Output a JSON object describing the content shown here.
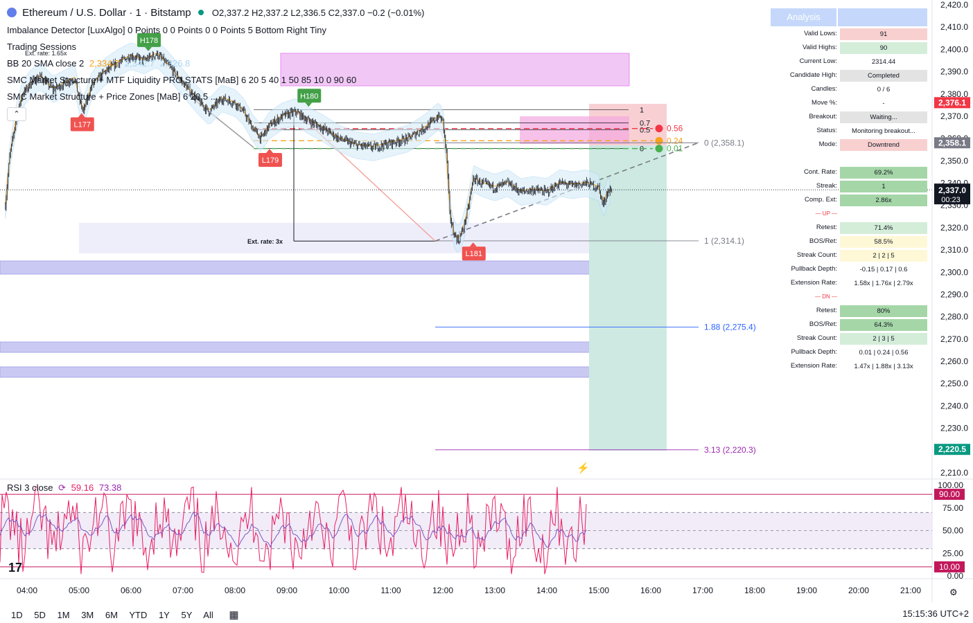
{
  "header": {
    "title": "Ethereum / U.S. Dollar · 1 · Bitstamp",
    "ohlc": "O2,337.2  H2,337.2  L2,336.5  C2,337.0  −0.2 (−0.01%)"
  },
  "indicators": {
    "imbalance": "Imbalance Detector [LuxAlgo] 0 Points 0 0 Points 0 0 Points 5 Bottom Right Tiny",
    "sessions": "Trading Sessions",
    "bb_label": "BB 20 SMA close 2",
    "bb_values": [
      "2,334.7",
      "2,342.7",
      "2,326.8"
    ],
    "smc": "SMC Market Structure + MTF Liquidity PRO STATS [MaB] 6 20 5 40 1 50 85 10 0 90 60",
    "smc_zones": "SMC Market Structure + Price Zones [MaB] 6 20 5 ...",
    "rsi_label": "RSI 3 close",
    "rsi_values": [
      "59.16",
      "73.38"
    ]
  },
  "chart_data": {
    "type": "candlestick",
    "symbol": "Ethereum / U.S. Dollar",
    "interval": "1",
    "exchange": "Bitstamp",
    "ylim": [
      2210,
      2420
    ],
    "yticks": [
      "2,420.0",
      "2,410.0",
      "2,400.0",
      "2,390.0",
      "2,380.0",
      "2,370.0",
      "2,360.0",
      "2,350.0",
      "2,340.0",
      "2,330.0",
      "2,320.0",
      "2,310.0",
      "2,300.0",
      "2,290.0",
      "2,280.0",
      "2,270.0",
      "2,260.0",
      "2,250.0",
      "2,240.0",
      "2,230.0",
      "2,220.0",
      "2,210.0"
    ],
    "xticks": [
      "04:00",
      "05:00",
      "06:00",
      "07:00",
      "08:00",
      "09:00",
      "10:00",
      "11:00",
      "12:00",
      "13:00",
      "14:00",
      "15:00",
      "16:00",
      "17:00",
      "18:00",
      "19:00",
      "20:00",
      "21:00"
    ],
    "price_path": [
      [
        "03:35",
        2330
      ],
      [
        "03:40",
        2352
      ],
      [
        "03:48",
        2370
      ],
      [
        "03:55",
        2380
      ],
      [
        "04:05",
        2385
      ],
      [
        "04:15",
        2388
      ],
      [
        "04:30",
        2382
      ],
      [
        "04:45",
        2385
      ],
      [
        "04:55",
        2387
      ],
      [
        "05:00",
        2378
      ],
      [
        "05:05",
        2372
      ],
      [
        "05:15",
        2384
      ],
      [
        "05:30",
        2390
      ],
      [
        "05:45",
        2394
      ],
      [
        "06:00",
        2397
      ],
      [
        "06:15",
        2395
      ],
      [
        "06:30",
        2398
      ],
      [
        "06:45",
        2392
      ],
      [
        "07:00",
        2385
      ],
      [
        "07:15",
        2378
      ],
      [
        "07:30",
        2372
      ],
      [
        "07:45",
        2378
      ],
      [
        "08:00",
        2376
      ],
      [
        "08:10",
        2372
      ],
      [
        "08:20",
        2365
      ],
      [
        "08:30",
        2360
      ],
      [
        "08:40",
        2366
      ],
      [
        "08:55",
        2370
      ],
      [
        "09:10",
        2372
      ],
      [
        "09:25",
        2368
      ],
      [
        "09:40",
        2365
      ],
      [
        "10:00",
        2360
      ],
      [
        "10:20",
        2357
      ],
      [
        "10:40",
        2356
      ],
      [
        "11:00",
        2358
      ],
      [
        "11:20",
        2360
      ],
      [
        "11:40",
        2365
      ],
      [
        "11:55",
        2370
      ],
      [
        "12:00",
        2368
      ],
      [
        "12:05",
        2350
      ],
      [
        "12:08",
        2326
      ],
      [
        "12:12",
        2318
      ],
      [
        "12:18",
        2314
      ],
      [
        "12:24",
        2320
      ],
      [
        "12:30",
        2330
      ],
      [
        "12:35",
        2342
      ],
      [
        "12:45",
        2340
      ],
      [
        "13:00",
        2338
      ],
      [
        "13:15",
        2340
      ],
      [
        "13:30",
        2336
      ],
      [
        "13:45",
        2337
      ],
      [
        "14:00",
        2336
      ],
      [
        "14:15",
        2340
      ],
      [
        "14:30",
        2339
      ],
      [
        "14:45",
        2340
      ],
      [
        "15:00",
        2338
      ],
      [
        "15:05",
        2330
      ],
      [
        "15:10",
        2336
      ],
      [
        "15:15",
        2337
      ]
    ],
    "current_price": "2,337.0",
    "countdown": "00:23",
    "price_badges": [
      {
        "value": "2,376.1",
        "price": 2376.1,
        "color": "#f23645"
      },
      {
        "value": "2,358.1",
        "price": 2358.1,
        "color": "#787b86"
      },
      {
        "value": "2,220.5",
        "price": 2220.5,
        "color": "#089981"
      }
    ],
    "pivots": [
      {
        "label": "H178",
        "time": "06:20",
        "price": 2398,
        "type": "high"
      },
      {
        "label": "L177",
        "time": "05:03",
        "price": 2372,
        "type": "low"
      },
      {
        "label": "L179",
        "time": "08:40",
        "price": 2356,
        "type": "low"
      },
      {
        "label": "H180",
        "time": "09:25",
        "price": 2373,
        "type": "high"
      },
      {
        "label": "L181",
        "time": "12:35",
        "price": 2314,
        "type": "low"
      }
    ],
    "fib_left": [
      {
        "label": "1",
        "price": 2373
      },
      {
        "label": "0.7",
        "price": 2367
      },
      {
        "label": "0.5",
        "price": 2364
      },
      {
        "label": "0",
        "price": 2355.5
      }
    ],
    "targets": [
      {
        "label": "0.56",
        "price": 2364.5,
        "color": "#f23645"
      },
      {
        "label": "0.24",
        "price": 2359,
        "color": "#f7a21b"
      },
      {
        "label": "0.01",
        "price": 2355.5,
        "color": "#4caf50"
      }
    ],
    "fib_right": [
      {
        "label": "0 (2,358.1)",
        "price": 2358.1,
        "color": "#787b86"
      },
      {
        "label": "1 (2,314.1)",
        "price": 2314.1,
        "color": "#787b86"
      },
      {
        "label": "1.88 (2,275.4)",
        "price": 2275.4,
        "color": "#2962ff"
      },
      {
        "label": "3.13 (2,220.3)",
        "price": 2220.3,
        "color": "#9c27b0"
      }
    ],
    "annotations": [
      "Ext. rate: 1.65x",
      "Ext. rate: 3x"
    ],
    "rsi": {
      "ylim": [
        0,
        100
      ],
      "yticks": [
        "100.00",
        "75.00",
        "50.00",
        "25.00",
        "0.00"
      ],
      "overbought": "90.00",
      "oversold": "10.00",
      "levels": [
        90,
        70,
        50,
        30,
        10
      ]
    }
  },
  "analysis_table": {
    "header": "Analysis",
    "rows": [
      {
        "label": "Valid Lows:",
        "value": "91",
        "bg": "#f8d0d0"
      },
      {
        "label": "Valid Highs:",
        "value": "90",
        "bg": "#d4edd9"
      },
      {
        "label": "Current Low:",
        "value": "2314.44",
        "bg": ""
      },
      {
        "label": "Candidate High:",
        "value": "Completed",
        "bg": "#e3e3e3"
      },
      {
        "label": "Candles:",
        "value": "0 / 6",
        "bg": ""
      },
      {
        "label": "Move %:",
        "value": "-",
        "bg": ""
      },
      {
        "label": "Breakout:",
        "value": "Waiting...",
        "bg": "#e3e3e3"
      },
      {
        "label": "Status:",
        "value": "Monitoring breakout...",
        "bg": ""
      },
      {
        "label": "Mode:",
        "value": "Downtrend",
        "bg": "#f8d0d0"
      },
      {
        "label": "",
        "value": "",
        "bg": ""
      },
      {
        "label": "Cont. Rate:",
        "value": "69.2%",
        "bg": "#a5d6a7"
      },
      {
        "label": "Streak:",
        "value": "1",
        "bg": "#a5d6a7"
      },
      {
        "label": "Comp. Ext:",
        "value": "2.86x",
        "bg": "#a5d6a7"
      },
      {
        "label": "— UP —",
        "value": "",
        "bg": ""
      },
      {
        "label": "Retest:",
        "value": "71.4%",
        "bg": "#d4edd9"
      },
      {
        "label": "BOS/Ret:",
        "value": "58.5%",
        "bg": "#fff8d6"
      },
      {
        "label": "Streak Count:",
        "value": "2 | 2 | 5",
        "bg": "#fff8d6"
      },
      {
        "label": "Pullback Depth:",
        "value": "-0.15 | 0.17 | 0.6",
        "bg": ""
      },
      {
        "label": "Extension Rate:",
        "value": "1.58x | 1.76x | 2.79x",
        "bg": ""
      },
      {
        "label": "— DN —",
        "value": "",
        "bg": ""
      },
      {
        "label": "Retest:",
        "value": "80%",
        "bg": "#a5d6a7"
      },
      {
        "label": "BOS/Ret:",
        "value": "64.3%",
        "bg": "#a5d6a7"
      },
      {
        "label": "Streak Count:",
        "value": "2 | 3 | 5",
        "bg": "#d4edd9"
      },
      {
        "label": "Pullback Depth:",
        "value": "0.01 | 0.24 | 0.56",
        "bg": ""
      },
      {
        "label": "Extension Rate:",
        "value": "1.47x | 1.88x | 3.13x",
        "bg": ""
      }
    ]
  },
  "bottom_bar": {
    "timeframes": [
      "1D",
      "5D",
      "1M",
      "3M",
      "6M",
      "YTD",
      "1Y",
      "5Y",
      "All"
    ],
    "clock": "15:15:36 UTC+2"
  },
  "colors": {
    "up": "#089981",
    "down": "#f23645",
    "bb": "#a8d4f0",
    "sma": "#f7a21b",
    "rsi": "#e91e63",
    "rsi_bg": "#ede7f6"
  }
}
